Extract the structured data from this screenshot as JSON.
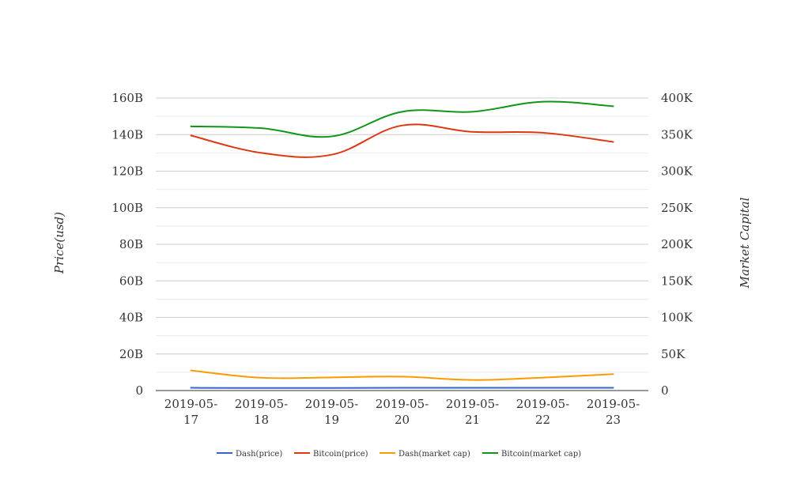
{
  "chart_data": {
    "type": "line",
    "x": [
      "2019-05-17",
      "2019-05-18",
      "2019-05-19",
      "2019-05-20",
      "2019-05-21",
      "2019-05-22",
      "2019-05-23"
    ],
    "x_tick_labels": [
      [
        "2019-05-",
        "17"
      ],
      [
        "2019-05-",
        "18"
      ],
      [
        "2019-05-",
        "19"
      ],
      [
        "2019-05-",
        "20"
      ],
      [
        "2019-05-",
        "21"
      ],
      [
        "2019-05-",
        "22"
      ],
      [
        "2019-05-",
        "23"
      ]
    ],
    "ylabel": "Price(usd)",
    "y2label": "Market Capital",
    "ylim": [
      0,
      160000000000
    ],
    "y2lim": [
      0,
      400000
    ],
    "y_ticks": [
      0,
      20000000000,
      40000000000,
      60000000000,
      80000000000,
      100000000000,
      120000000000,
      140000000000,
      160000000000
    ],
    "y_tick_labels": [
      "0",
      "20B",
      "40B",
      "60B",
      "80B",
      "100B",
      "120B",
      "140B",
      "160B"
    ],
    "y2_ticks": [
      0,
      50000,
      100000,
      150000,
      200000,
      250000,
      300000,
      350000,
      400000
    ],
    "y2_tick_labels": [
      "0",
      "50K",
      "100K",
      "150K",
      "200K",
      "250K",
      "300K",
      "350K",
      "400K"
    ],
    "grid": true,
    "legend_position": "bottom",
    "series": [
      {
        "name": "Dash(price)",
        "color": "#3366cc",
        "axis": "left",
        "values": [
          1500000000,
          1400000000,
          1400000000,
          1500000000,
          1500000000,
          1500000000,
          1500000000
        ]
      },
      {
        "name": "Bitcoin(price)",
        "color": "#dc3912",
        "axis": "left",
        "values": [
          139500000000,
          130000000000,
          129000000000,
          145000000000,
          141500000000,
          141000000000,
          136000000000
        ]
      },
      {
        "name": "Dash(market cap)",
        "color": "#ff9900",
        "axis": "left",
        "values": [
          11000000000,
          7000000000,
          7200000000,
          7600000000,
          5800000000,
          7100000000,
          9000000000
        ]
      },
      {
        "name": "Bitcoin(market cap)",
        "color": "#109618",
        "axis": "left",
        "values": [
          144500000000,
          143500000000,
          139000000000,
          152500000000,
          152500000000,
          158000000000,
          155500000000
        ]
      }
    ]
  }
}
